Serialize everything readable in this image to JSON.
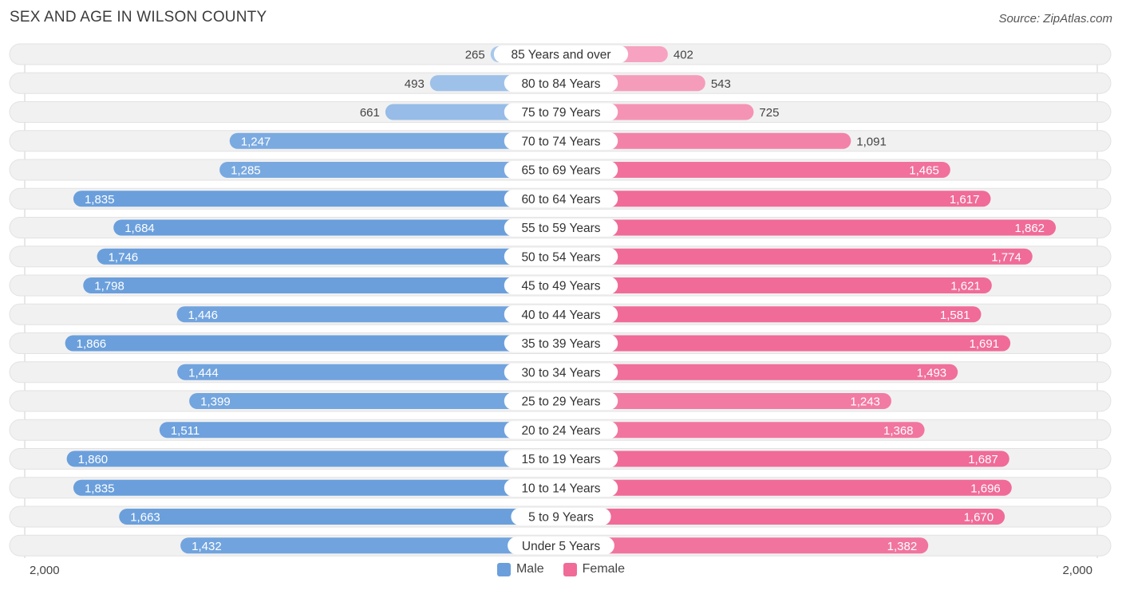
{
  "title": "SEX AND AGE IN WILSON COUNTY",
  "source": "Source: ZipAtlas.com",
  "colors": {
    "male_dark": "#6a9fdc",
    "male_light": "#a8c8ec",
    "female_dark": "#f06b98",
    "female_light": "#f7a8c4",
    "row_bg": "#f1f1f1",
    "label_bg": "#ffffff"
  },
  "chart_data": {
    "type": "bar",
    "orientation": "horizontal-diverging",
    "categories": [
      "85 Years and over",
      "80 to 84 Years",
      "75 to 79 Years",
      "70 to 74 Years",
      "65 to 69 Years",
      "60 to 64 Years",
      "55 to 59 Years",
      "50 to 54 Years",
      "45 to 49 Years",
      "40 to 44 Years",
      "35 to 39 Years",
      "30 to 34 Years",
      "25 to 29 Years",
      "20 to 24 Years",
      "15 to 19 Years",
      "10 to 14 Years",
      "5 to 9 Years",
      "Under 5 Years"
    ],
    "series": [
      {
        "name": "Male",
        "values": [
          265,
          493,
          661,
          1247,
          1285,
          1835,
          1684,
          1746,
          1798,
          1446,
          1866,
          1444,
          1399,
          1511,
          1860,
          1835,
          1663,
          1432
        ]
      },
      {
        "name": "Female",
        "values": [
          402,
          543,
          725,
          1091,
          1465,
          1617,
          1862,
          1774,
          1621,
          1581,
          1691,
          1493,
          1243,
          1368,
          1687,
          1696,
          1670,
          1382
        ]
      }
    ],
    "value_labels": {
      "male": [
        "265",
        "493",
        "661",
        "1,247",
        "1,285",
        "1,835",
        "1,684",
        "1,746",
        "1,798",
        "1,446",
        "1,866",
        "1,444",
        "1,399",
        "1,511",
        "1,860",
        "1,835",
        "1,663",
        "1,432"
      ],
      "female": [
        "402",
        "543",
        "725",
        "1,091",
        "1,465",
        "1,617",
        "1,862",
        "1,774",
        "1,621",
        "1,581",
        "1,691",
        "1,493",
        "1,243",
        "1,368",
        "1,687",
        "1,696",
        "1,670",
        "1,382"
      ]
    },
    "xlim": [
      -2000,
      2000
    ],
    "axis_labels": {
      "left": "2,000",
      "right": "2,000"
    },
    "legend": {
      "position": "bottom-center",
      "entries": [
        "Male",
        "Female"
      ]
    }
  }
}
